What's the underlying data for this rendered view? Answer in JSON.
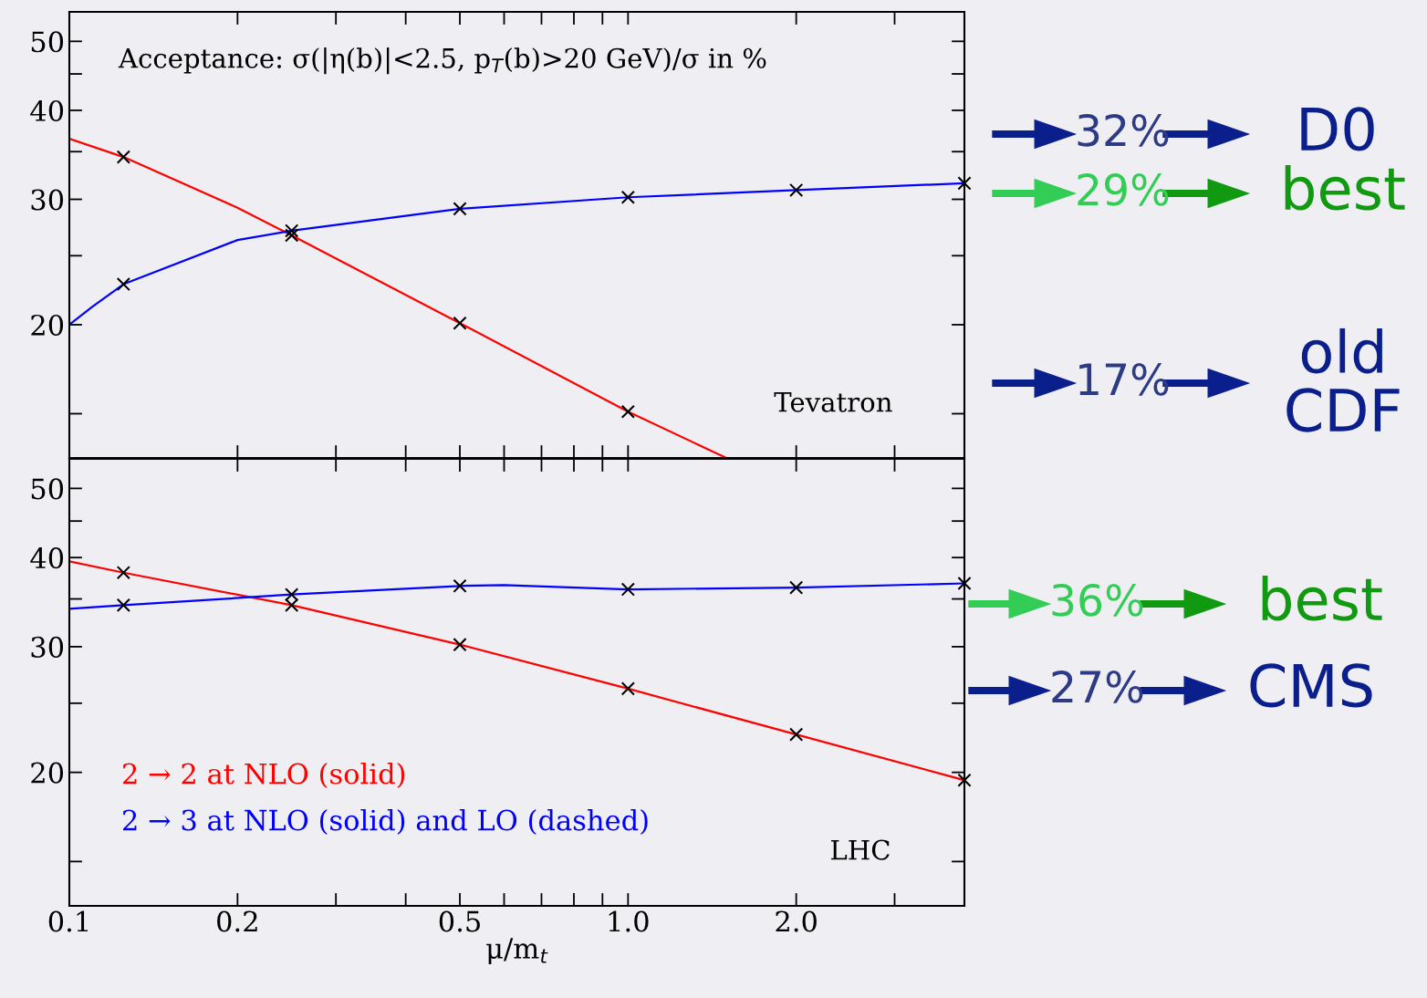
{
  "chart_data": [
    {
      "type": "line",
      "log": "xy",
      "xlim": [
        0.1,
        4
      ],
      "ylim": [
        13,
        55
      ],
      "xticks": [
        {
          "value": 0.1,
          "label": null
        },
        {
          "value": 0.2,
          "label": null
        },
        {
          "value": 0.3,
          "label": null
        },
        {
          "value": 0.4,
          "label": null
        },
        {
          "value": 0.5,
          "label": null
        },
        {
          "value": 0.6,
          "label": null
        },
        {
          "value": 0.7,
          "label": null
        },
        {
          "value": 0.8,
          "label": null
        },
        {
          "value": 0.9,
          "label": null
        },
        {
          "value": 1,
          "label": null
        },
        {
          "value": 2,
          "label": null
        },
        {
          "value": 3,
          "label": null
        }
      ],
      "yticks": [
        {
          "value": 15,
          "label": null
        },
        20,
        {
          "value": 25,
          "label": null
        },
        30,
        {
          "value": 35,
          "label": null
        },
        40,
        {
          "value": 45,
          "label": null
        },
        50
      ],
      "tick_labels": "y",
      "grid": false,
      "legend": false,
      "series": [
        {
          "color": "#ff0000",
          "marker": "none",
          "x": [
            0.1,
            0.125,
            0.2,
            0.25,
            0.5,
            1,
            1.5
          ],
          "values": [
            36.5,
            34.4,
            29.2,
            26.7,
            20.1,
            15.1,
            13
          ]
        },
        {
          "color": "#0000ff",
          "marker": "none",
          "x": [
            0.1,
            0.11,
            0.125,
            0.2,
            0.25,
            0.5,
            1,
            2,
            4
          ],
          "values": [
            20,
            21.2,
            22.8,
            26.3,
            27.1,
            29.1,
            30.2,
            30.9,
            31.6
          ]
        },
        {
          "type": "scatter",
          "color": "#000000",
          "marker": "cross",
          "x": [
            0.125,
            0.25,
            0.5,
            1
          ],
          "values": [
            34.4,
            26.7,
            20.1,
            15.1
          ]
        },
        {
          "type": "scatter",
          "color": "#000000",
          "marker": "cross",
          "x": [
            0.125,
            0.25,
            0.5,
            1,
            2,
            4
          ],
          "values": [
            22.8,
            27.1,
            29.1,
            30.2,
            30.9,
            31.6
          ]
        }
      ],
      "annotations": [
        "Acceptance: σ(|η(b)|<2.5, p$_{T}$(b)>20 GeV)/σ in %",
        "Tevatron",
        "32%",
        "D0",
        "29%",
        "best",
        "17%",
        "old\nCDF"
      ]
    },
    {
      "type": "line",
      "log": "xy",
      "xlim": [
        0.1,
        4
      ],
      "ylim": [
        13,
        55
      ],
      "xlabel": "μ/m$_{t}$",
      "xticks": [
        0.1,
        0.2,
        {
          "value": 0.3,
          "label": null
        },
        {
          "value": 0.4,
          "label": null
        },
        0.5,
        {
          "value": 0.6,
          "label": null
        },
        {
          "value": 0.7,
          "label": null
        },
        {
          "value": 0.8,
          "label": null
        },
        {
          "value": 0.9,
          "label": null
        },
        {
          "value": 1,
          "label": "1.0"
        },
        {
          "value": 2,
          "label": "2.0"
        },
        {
          "value": 3,
          "label": null
        }
      ],
      "yticks": [
        {
          "value": 15,
          "label": null
        },
        20,
        {
          "value": 25,
          "label": null
        },
        30,
        {
          "value": 35,
          "label": null
        },
        40,
        {
          "value": 45,
          "label": null
        },
        50
      ],
      "grid": false,
      "legend": "bottom left",
      "series": [
        {
          "name": "2 → 2 at NLO (solid)",
          "color": "#ff0000",
          "marker": "none",
          "x": [
            0.1,
            0.125,
            0.25,
            0.5,
            1,
            2,
            4
          ],
          "values": [
            39.5,
            38.1,
            34.3,
            30.2,
            26.2,
            22.6,
            19.5
          ]
        },
        {
          "name": "2 → 3 at NLO (solid) and LO (dashed)",
          "color": "#0000ff",
          "marker": "none",
          "x": [
            0.1,
            0.125,
            0.25,
            0.5,
            0.6,
            1,
            2,
            4
          ],
          "values": [
            33.9,
            34.3,
            35.5,
            36.5,
            36.6,
            36.1,
            36.3,
            36.8
          ]
        },
        {
          "type": "scatter",
          "color": "#000000",
          "marker": "cross",
          "x": [
            0.125,
            0.25,
            0.5,
            1,
            2,
            4
          ],
          "values": [
            38.1,
            34.3,
            30.2,
            26.2,
            22.6,
            19.5
          ]
        },
        {
          "type": "scatter",
          "color": "#000000",
          "marker": "cross",
          "x": [
            0.125,
            0.25,
            0.5,
            1,
            2,
            4
          ],
          "values": [
            34.3,
            35.5,
            36.5,
            36.1,
            36.3,
            36.8
          ]
        }
      ],
      "annotations": [
        "LHC",
        "36%",
        "best",
        "27%",
        "CMS"
      ]
    }
  ]
}
